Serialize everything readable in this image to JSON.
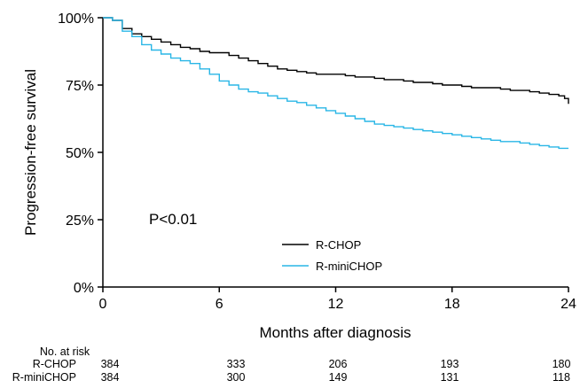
{
  "chart_data": {
    "type": "line",
    "step": true,
    "xlabel": "Months after diagnosis",
    "ylabel": "Progression-free survival",
    "xlim": [
      0,
      24
    ],
    "ylim": [
      0,
      100
    ],
    "x_ticks": [
      0,
      6,
      12,
      18,
      24
    ],
    "y_ticks": [
      0,
      25,
      50,
      75,
      100
    ],
    "y_tick_labels": [
      "0%",
      "25%",
      "50%",
      "75%",
      "100%"
    ],
    "grid": false,
    "legend_position": "bottom-right",
    "annotation": "P<0.01",
    "series": [
      {
        "name": "R-CHOP",
        "color": "#000000",
        "x": [
          0,
          0.5,
          1,
          1.5,
          2,
          2.5,
          3,
          3.5,
          4,
          4.5,
          5,
          5.5,
          6,
          6.5,
          7,
          7.5,
          8,
          8.5,
          9,
          9.5,
          10,
          10.5,
          11,
          11.5,
          12,
          12.5,
          13,
          13.5,
          14,
          14.5,
          15,
          15.5,
          16,
          16.5,
          17,
          17.5,
          18,
          18.5,
          19,
          19.5,
          20,
          20.5,
          21,
          21.5,
          22,
          22.5,
          23,
          23.5,
          23.8,
          24
        ],
        "y": [
          100,
          99,
          96,
          94,
          93,
          92,
          91,
          90,
          89,
          88.5,
          87.5,
          87,
          87,
          86,
          85,
          84,
          83,
          82,
          81,
          80.5,
          80,
          79.5,
          79,
          79,
          79,
          78.5,
          78,
          78,
          77.5,
          77,
          77,
          76.5,
          76,
          76,
          75.5,
          75,
          75,
          74.5,
          74,
          74,
          74,
          73.5,
          73,
          73,
          72.5,
          72,
          71.5,
          71,
          70,
          68
        ]
      },
      {
        "name": "R-miniCHOP",
        "color": "#29b6e6",
        "x": [
          0,
          0.5,
          1,
          1.5,
          2,
          2.5,
          3,
          3.5,
          4,
          4.5,
          5,
          5.5,
          6,
          6.5,
          7,
          7.5,
          8,
          8.5,
          9,
          9.5,
          10,
          10.5,
          11,
          11.5,
          12,
          12.5,
          13,
          13.5,
          14,
          14.5,
          15,
          15.5,
          16,
          16.5,
          17,
          17.5,
          18,
          18.5,
          19,
          19.5,
          20,
          20.5,
          21,
          21.5,
          22,
          22.5,
          23,
          23.5,
          24
        ],
        "y": [
          100,
          99,
          95,
          93,
          90,
          88,
          86.5,
          85,
          84,
          83,
          81,
          79,
          76.5,
          75,
          73.5,
          72.5,
          72,
          71,
          70,
          69,
          68.5,
          67.5,
          66.5,
          65.5,
          64.5,
          63.5,
          62.5,
          61.5,
          60.5,
          60,
          59.5,
          59,
          58.5,
          58,
          57.5,
          57,
          56.5,
          56,
          55.5,
          55,
          54.5,
          54,
          54,
          53.5,
          53,
          52.5,
          52,
          51.5,
          51.5
        ]
      }
    ],
    "risk_table": {
      "header": "No. at risk",
      "times": [
        0,
        6,
        12,
        18,
        24
      ],
      "rows": [
        {
          "label": "R-CHOP",
          "counts": [
            "384",
            "333",
            "206",
            "193",
            "180"
          ]
        },
        {
          "label": "R-miniCHOP",
          "counts": [
            "384",
            "300",
            "149",
            "131",
            "118"
          ]
        }
      ]
    }
  }
}
